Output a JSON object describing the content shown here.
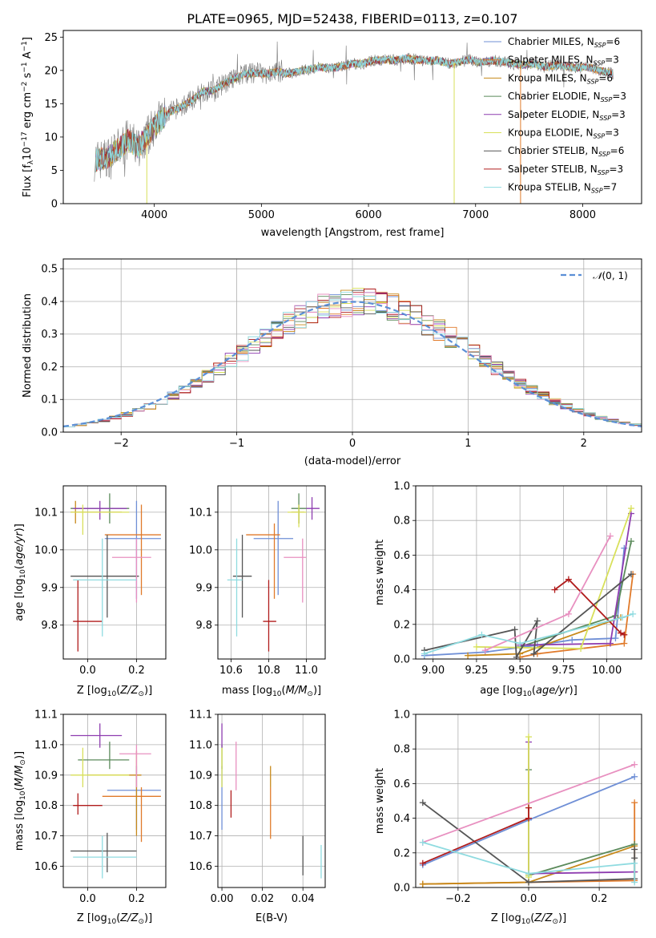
{
  "figure_title": "PLATE=0965, MJD=52438, FIBERID=0113, z=0.107",
  "chart_data": [
    {
      "panel": "spectrum",
      "type": "line",
      "xlabel": "wavelength [Angstrom, rest frame]",
      "ylabel": "Flux [f_λ10⁻¹⁷ erg cm⁻² s⁻¹ A⁻¹]",
      "xlim": [
        3150,
        8550
      ],
      "ylim": [
        0,
        26
      ],
      "xticks": [
        4000,
        5000,
        6000,
        7000,
        8000
      ],
      "yticks": [
        0,
        5,
        10,
        15,
        20,
        25
      ],
      "grid": false,
      "legend_position": "top-right",
      "continuum": {
        "x": [
          3450,
          3550,
          3650,
          3750,
          3850,
          3950,
          4050,
          4150,
          4250,
          4350,
          4450,
          4550,
          4650,
          4750,
          4850,
          4950,
          5050,
          5150,
          5250,
          5350,
          5450,
          5550,
          5650,
          5750,
          5850,
          5950,
          6050,
          6150,
          6250,
          6350,
          6450,
          6550,
          6650,
          6750,
          6850,
          6950,
          7050,
          7150,
          7250,
          7350,
          7450,
          7550,
          7650,
          7750,
          7850,
          7950,
          8050,
          8150,
          8280
        ],
        "y": [
          6.5,
          6.8,
          8.0,
          9.5,
          8.5,
          10.5,
          12.5,
          13.8,
          14.5,
          15.5,
          16.8,
          17.0,
          18.0,
          18.8,
          19.5,
          19.6,
          19.5,
          19.8,
          19.5,
          19.9,
          20.2,
          20.5,
          20.3,
          20.6,
          21.0,
          21.0,
          21.5,
          21.6,
          21.5,
          21.8,
          21.6,
          21.4,
          21.5,
          21.0,
          21.3,
          21.6,
          21.2,
          21.5,
          21.3,
          21.0,
          20.8,
          21.0,
          20.5,
          20.8,
          20.6,
          20.4,
          20.5,
          20.0,
          19.5
        ]
      },
      "series": [
        {
          "name": "Chabrier MILES, N$_{SSP}$=6",
          "color": "#6f8fd6"
        },
        {
          "name": "Salpeter MILES, N$_{SSP}$=3",
          "color": "#e07a2a"
        },
        {
          "name": "Kroupa MILES, N$_{SSP}$=6",
          "color": "#c7891a"
        },
        {
          "name": "Chabrier ELODIE, N$_{SSP}$=3",
          "color": "#5b8a5b"
        },
        {
          "name": "Salpeter ELODIE, N$_{SSP}$=3",
          "color": "#8e3db0"
        },
        {
          "name": "Kroupa ELODIE, N$_{SSP}$=3",
          "color": "#d8e05a"
        },
        {
          "name": "Chabrier STELIB, N$_{SSP}$=6",
          "color": "#555555"
        },
        {
          "name": "Salpeter STELIB, N$_{SSP}$=3",
          "color": "#b01c1c"
        },
        {
          "name": "Kroupa STELIB, N$_{SSP}$=7",
          "color": "#8fdbe0"
        }
      ],
      "legend_labels": [
        {
          "pre": "Chabrier MILES, N",
          "sub": "SSP",
          "post": "=6"
        },
        {
          "pre": "Salpeter MILES, N",
          "sub": "SSP",
          "post": "=3"
        },
        {
          "pre": "Kroupa MILES, N",
          "sub": "SSP",
          "post": "=6"
        },
        {
          "pre": "Chabrier ELODIE, N",
          "sub": "SSP",
          "post": "=3"
        },
        {
          "pre": "Salpeter ELODIE, N",
          "sub": "SSP",
          "post": "=3"
        },
        {
          "pre": "Kroupa ELODIE, N",
          "sub": "SSP",
          "post": "=3"
        },
        {
          "pre": "Chabrier STELIB, N",
          "sub": "SSP",
          "post": "=6"
        },
        {
          "pre": "Salpeter STELIB, N",
          "sub": "SSP",
          "post": "=3"
        },
        {
          "pre": "Kroupa STELIB, N",
          "sub": "SSP",
          "post": "=7"
        }
      ],
      "vertical_drops": [
        {
          "x": 3930,
          "color": "#d8e05a"
        },
        {
          "x": 6800,
          "color": "#d8e05a"
        },
        {
          "x": 7420,
          "color": "#e07a2a"
        }
      ]
    },
    {
      "panel": "residual_histogram",
      "type": "histogram",
      "xlabel": "(data-model)/error",
      "ylabel": "Normed distribution",
      "xlim": [
        -2.5,
        2.5
      ],
      "ylim": [
        0,
        0.53
      ],
      "xticks": [
        -2,
        -1,
        0,
        1,
        2
      ],
      "yticks": [
        0.0,
        0.1,
        0.2,
        0.3,
        0.4,
        0.5
      ],
      "grid": true,
      "legend_position": "top-right",
      "reference_curve": {
        "name": "N(0,1)",
        "color": "#5b8fd6",
        "style": "dashed"
      },
      "bin_width": 0.1
    },
    {
      "panel": "age_vs_Z",
      "type": "errorbar",
      "xlabel": "Z [log10(Z/Z☉)]",
      "ylabel": "age [log10(age/yr)]",
      "xlim": [
        -0.1,
        0.32
      ],
      "ylim": [
        9.71,
        10.17
      ],
      "xticks": [
        0.0,
        0.2
      ],
      "yticks": [
        9.8,
        9.9,
        10.0,
        10.1
      ],
      "grid": true,
      "points": [
        {
          "color": "#6f8fd6",
          "x": 0.2,
          "xmin": 0.07,
          "xmax": 0.3,
          "y": 10.03,
          "ymin": 9.87,
          "ymax": 10.13
        },
        {
          "color": "#e07a2a",
          "x": 0.22,
          "xmin": 0.07,
          "xmax": 0.3,
          "y": 10.04,
          "ymin": 9.88,
          "ymax": 10.12
        },
        {
          "color": "#c7891a",
          "x": -0.05,
          "xmin": -0.07,
          "xmax": 0.14,
          "y": 10.1,
          "ymin": 10.07,
          "ymax": 10.13
        },
        {
          "color": "#5b8a5b",
          "x": 0.09,
          "xmin": -0.07,
          "xmax": 0.17,
          "y": 10.11,
          "ymin": 10.07,
          "ymax": 10.15
        },
        {
          "color": "#8e3db0",
          "x": 0.05,
          "xmin": -0.06,
          "xmax": 0.16,
          "y": 10.11,
          "ymin": 10.08,
          "ymax": 10.13
        },
        {
          "color": "#d8e05a",
          "x": -0.02,
          "xmin": -0.07,
          "xmax": 0.17,
          "y": 10.1,
          "ymin": 10.04,
          "ymax": 10.12
        },
        {
          "color": "#555555",
          "x": 0.08,
          "xmin": -0.07,
          "xmax": 0.21,
          "y": 9.93,
          "ymin": 9.82,
          "ymax": 10.04
        },
        {
          "color": "#b01c1c",
          "x": -0.04,
          "xmin": -0.06,
          "xmax": 0.06,
          "y": 9.81,
          "ymin": 9.73,
          "ymax": 9.92
        },
        {
          "color": "#e890c0",
          "x": 0.2,
          "xmin": 0.1,
          "xmax": 0.26,
          "y": 9.98,
          "ymin": 9.86,
          "ymax": 10.03
        },
        {
          "color": "#8fdbe0",
          "x": 0.06,
          "xmin": -0.06,
          "xmax": 0.2,
          "y": 9.92,
          "ymin": 9.77,
          "ymax": 10.03
        }
      ]
    },
    {
      "panel": "age_vs_mass",
      "type": "errorbar",
      "xlabel": "mass [log10(M/M☉)]",
      "ylabel": "",
      "xlim": [
        10.53,
        11.1
      ],
      "ylim": [
        9.71,
        10.17
      ],
      "xticks": [
        10.6,
        10.8,
        11.0
      ],
      "yticks": [
        9.8,
        9.9,
        10.0,
        10.1
      ],
      "grid": true,
      "points": [
        {
          "color": "#6f8fd6",
          "x": 10.85,
          "xmin": 10.72,
          "xmax": 10.93,
          "y": 10.03,
          "ymin": 9.88,
          "ymax": 10.13
        },
        {
          "color": "#e07a2a",
          "x": 10.83,
          "xmin": 10.68,
          "xmax": 10.86,
          "y": 10.04,
          "ymin": 9.87,
          "ymax": 10.07
        },
        {
          "color": "#c7891a",
          "x": 10.96,
          "xmin": 10.92,
          "xmax": 10.99,
          "y": 10.1,
          "ymin": 10.07,
          "ymax": 10.12
        },
        {
          "color": "#5b8a5b",
          "x": 10.96,
          "xmin": 10.92,
          "xmax": 11.0,
          "y": 10.11,
          "ymin": 10.07,
          "ymax": 10.15
        },
        {
          "color": "#8e3db0",
          "x": 11.03,
          "xmin": 11.0,
          "xmax": 11.07,
          "y": 10.11,
          "ymin": 10.08,
          "ymax": 10.14
        },
        {
          "color": "#d8e05a",
          "x": 10.96,
          "xmin": 10.9,
          "xmax": 11.0,
          "y": 10.1,
          "ymin": 10.06,
          "ymax": 10.12
        },
        {
          "color": "#555555",
          "x": 10.66,
          "xmin": 10.61,
          "xmax": 10.71,
          "y": 9.93,
          "ymin": 9.82,
          "ymax": 10.04
        },
        {
          "color": "#b01c1c",
          "x": 10.8,
          "xmin": 10.77,
          "xmax": 10.84,
          "y": 9.81,
          "ymin": 9.73,
          "ymax": 9.92
        },
        {
          "color": "#e890c0",
          "x": 10.98,
          "xmin": 10.88,
          "xmax": 11.0,
          "y": 9.98,
          "ymin": 9.86,
          "ymax": 10.03
        },
        {
          "color": "#8fdbe0",
          "x": 10.63,
          "xmin": 10.58,
          "xmax": 10.66,
          "y": 9.92,
          "ymin": 9.77,
          "ymax": 10.03
        }
      ]
    },
    {
      "panel": "weight_vs_age",
      "type": "line",
      "xlabel": "age [log10(age/yr)]",
      "ylabel": "mass weight",
      "xlim": [
        8.9,
        10.2
      ],
      "ylim": [
        0,
        1
      ],
      "xticks": [
        9.0,
        9.25,
        9.5,
        9.75,
        10.0
      ],
      "yticks": [
        0.0,
        0.2,
        0.4,
        0.6,
        0.8,
        1.0
      ],
      "grid": true,
      "series": [
        {
          "color": "#6f8fd6",
          "x": [
            8.95,
            9.3,
            9.6,
            9.8,
            10.05,
            10.1
          ],
          "y": [
            0.02,
            0.04,
            0.08,
            0.11,
            0.12,
            0.64
          ]
        },
        {
          "color": "#e07a2a",
          "x": [
            9.5,
            9.6,
            10.1,
            10.15
          ],
          "y": [
            0.01,
            0.03,
            0.09,
            0.49
          ]
        },
        {
          "color": "#c7891a",
          "x": [
            9.2,
            9.5,
            10.08
          ],
          "y": [
            0.02,
            0.03,
            0.24
          ]
        },
        {
          "color": "#5b8a5b",
          "x": [
            9.5,
            10.05,
            10.14
          ],
          "y": [
            0.07,
            0.25,
            0.68
          ]
        },
        {
          "color": "#8e3db0",
          "x": [
            9.5,
            10.02,
            10.14
          ],
          "y": [
            0.08,
            0.09,
            0.84
          ]
        },
        {
          "color": "#d8e05a",
          "x": [
            9.25,
            9.85,
            10.14
          ],
          "y": [
            0.07,
            0.06,
            0.87
          ]
        },
        {
          "color": "#555555",
          "x": [
            8.95,
            9.47,
            9.48,
            9.6,
            9.58,
            10.14
          ],
          "y": [
            0.05,
            0.17,
            0.01,
            0.22,
            0.03,
            0.49
          ]
        },
        {
          "color": "#b01c1c",
          "x": [
            9.7,
            9.78,
            10.08,
            10.1
          ],
          "y": [
            0.4,
            0.46,
            0.15,
            0.14
          ]
        },
        {
          "color": "#e890c0",
          "x": [
            9.3,
            9.78,
            10.02
          ],
          "y": [
            0.05,
            0.26,
            0.71
          ]
        },
        {
          "color": "#8fdbe0",
          "x": [
            8.95,
            9.28,
            9.5,
            10.09,
            10.15
          ],
          "y": [
            0.03,
            0.14,
            0.09,
            0.24,
            0.26
          ]
        }
      ]
    },
    {
      "panel": "mass_vs_Z",
      "type": "errorbar",
      "xlabel": "Z [log10(Z/Z☉)]",
      "ylabel": "mass [log10(M/M☉)]",
      "xlim": [
        -0.1,
        0.32
      ],
      "ylim": [
        10.53,
        11.1
      ],
      "xticks": [
        0.0,
        0.2
      ],
      "yticks": [
        10.6,
        10.7,
        10.8,
        10.9,
        11.0,
        11.1
      ],
      "grid": true,
      "points": [
        {
          "color": "#6f8fd6",
          "x": 0.2,
          "xmin": 0.08,
          "xmax": 0.3,
          "y": 10.85,
          "ymin": 10.72,
          "ymax": 10.93
        },
        {
          "color": "#e07a2a",
          "x": 0.22,
          "xmin": 0.06,
          "xmax": 0.3,
          "y": 10.83,
          "ymin": 10.68,
          "ymax": 10.86
        },
        {
          "color": "#c7891a",
          "x": 0.2,
          "xmin": 0.0,
          "xmax": 0.22,
          "y": 10.9,
          "ymin": 10.7,
          "ymax": 10.98
        },
        {
          "color": "#5b8a5b",
          "x": 0.09,
          "xmin": -0.04,
          "xmax": 0.17,
          "y": 10.95,
          "ymin": 10.92,
          "ymax": 11.01
        },
        {
          "color": "#8e3db0",
          "x": 0.05,
          "xmin": -0.07,
          "xmax": 0.14,
          "y": 11.03,
          "ymin": 10.99,
          "ymax": 11.07
        },
        {
          "color": "#d8e05a",
          "x": -0.02,
          "xmin": -0.07,
          "xmax": 0.17,
          "y": 10.9,
          "ymin": 10.86,
          "ymax": 10.99
        },
        {
          "color": "#555555",
          "x": 0.08,
          "xmin": -0.07,
          "xmax": 0.2,
          "y": 10.65,
          "ymin": 10.58,
          "ymax": 10.71
        },
        {
          "color": "#b01c1c",
          "x": -0.04,
          "xmin": -0.06,
          "xmax": 0.06,
          "y": 10.8,
          "ymin": 10.77,
          "ymax": 10.84
        },
        {
          "color": "#e890c0",
          "x": 0.2,
          "xmin": 0.13,
          "xmax": 0.26,
          "y": 10.97,
          "ymin": 10.86,
          "ymax": 11.0
        },
        {
          "color": "#8fdbe0",
          "x": 0.06,
          "xmin": -0.06,
          "xmax": 0.2,
          "y": 10.63,
          "ymin": 10.56,
          "ymax": 10.7
        }
      ]
    },
    {
      "panel": "mass_vs_EBV",
      "type": "errorbar",
      "xlabel": "E(B-V)",
      "ylabel": "",
      "xlim": [
        -0.002,
        0.051
      ],
      "ylim": [
        10.53,
        11.1
      ],
      "xticks": [
        0.0,
        0.02,
        0.04
      ],
      "yticks": [
        10.6,
        10.7,
        10.8,
        10.9,
        11.0,
        11.1
      ],
      "grid": true,
      "points": [
        {
          "color": "#6f8fd6",
          "x": 0.0,
          "y": 10.85,
          "ymin": 10.72,
          "ymax": 10.93
        },
        {
          "color": "#e07a2a",
          "x": 0.024,
          "y": 10.8,
          "ymin": 10.69,
          "ymax": 10.86
        },
        {
          "color": "#c7891a",
          "x": 0.024,
          "y": 10.9,
          "ymin": 10.86,
          "ymax": 10.93
        },
        {
          "color": "#5b8a5b",
          "x": 0.0,
          "y": 10.95,
          "ymin": 10.92,
          "ymax": 11.0
        },
        {
          "color": "#8e3db0",
          "x": 0.0,
          "y": 11.03,
          "ymin": 10.99,
          "ymax": 11.07
        },
        {
          "color": "#d8e05a",
          "x": 0.0,
          "y": 10.9,
          "ymin": 10.86,
          "ymax": 10.99
        },
        {
          "color": "#555555",
          "x": 0.04,
          "y": 10.63,
          "ymin": 10.57,
          "ymax": 10.7
        },
        {
          "color": "#b01c1c",
          "x": 0.0045,
          "y": 10.8,
          "ymin": 10.76,
          "ymax": 10.85
        },
        {
          "color": "#e890c0",
          "x": 0.007,
          "y": 10.94,
          "ymin": 10.85,
          "ymax": 11.01
        },
        {
          "color": "#8fdbe0",
          "x": 0.049,
          "y": 10.6,
          "ymin": 10.56,
          "ymax": 10.67
        }
      ]
    },
    {
      "panel": "weight_vs_Z",
      "type": "line",
      "xlabel": "Z [log10(Z/Z☉)]",
      "ylabel": "mass weight",
      "xlim": [
        -0.32,
        0.32
      ],
      "ylim": [
        0,
        1
      ],
      "xticks": [
        -0.2,
        0.0,
        0.2
      ],
      "yticks": [
        0.0,
        0.2,
        0.4,
        0.6,
        0.8,
        1.0
      ],
      "grid": true,
      "series": [
        {
          "color": "#6f8fd6",
          "x": [
            -0.3,
            0.0,
            0.3
          ],
          "y": [
            0.13,
            0.39,
            0.64
          ]
        },
        {
          "color": "#e07a2a",
          "x": [
            -0.3,
            0.3,
            0.3,
            0.3
          ],
          "y": [
            0.02,
            0.04,
            0.49,
            0.09
          ]
        },
        {
          "color": "#c7891a",
          "x": [
            -0.3,
            0.0,
            0.3
          ],
          "y": [
            0.02,
            0.03,
            0.24
          ]
        },
        {
          "color": "#5b8a5b",
          "x": [
            0.0,
            0.0,
            0.3
          ],
          "y": [
            0.68,
            0.07,
            0.25
          ]
        },
        {
          "color": "#8e3db0",
          "x": [
            0.0,
            0.0,
            0.3
          ],
          "y": [
            0.84,
            0.08,
            0.09
          ]
        },
        {
          "color": "#d8e05a",
          "x": [
            0.0,
            0.0,
            0.0
          ],
          "y": [
            0.87,
            0.07,
            0.06
          ]
        },
        {
          "color": "#555555",
          "x": [
            -0.3,
            0.0,
            0.3,
            0.3,
            0.3
          ],
          "y": [
            0.49,
            0.03,
            0.05,
            0.17,
            0.22
          ]
        },
        {
          "color": "#b01c1c",
          "x": [
            -0.3,
            0.0,
            0.0
          ],
          "y": [
            0.14,
            0.4,
            0.46
          ]
        },
        {
          "color": "#e890c0",
          "x": [
            -0.3,
            0.3
          ],
          "y": [
            0.26,
            0.71
          ]
        },
        {
          "color": "#8fdbe0",
          "x": [
            -0.3,
            0.0,
            0.3,
            0.3
          ],
          "y": [
            0.26,
            0.08,
            0.14,
            0.03
          ]
        }
      ]
    }
  ]
}
